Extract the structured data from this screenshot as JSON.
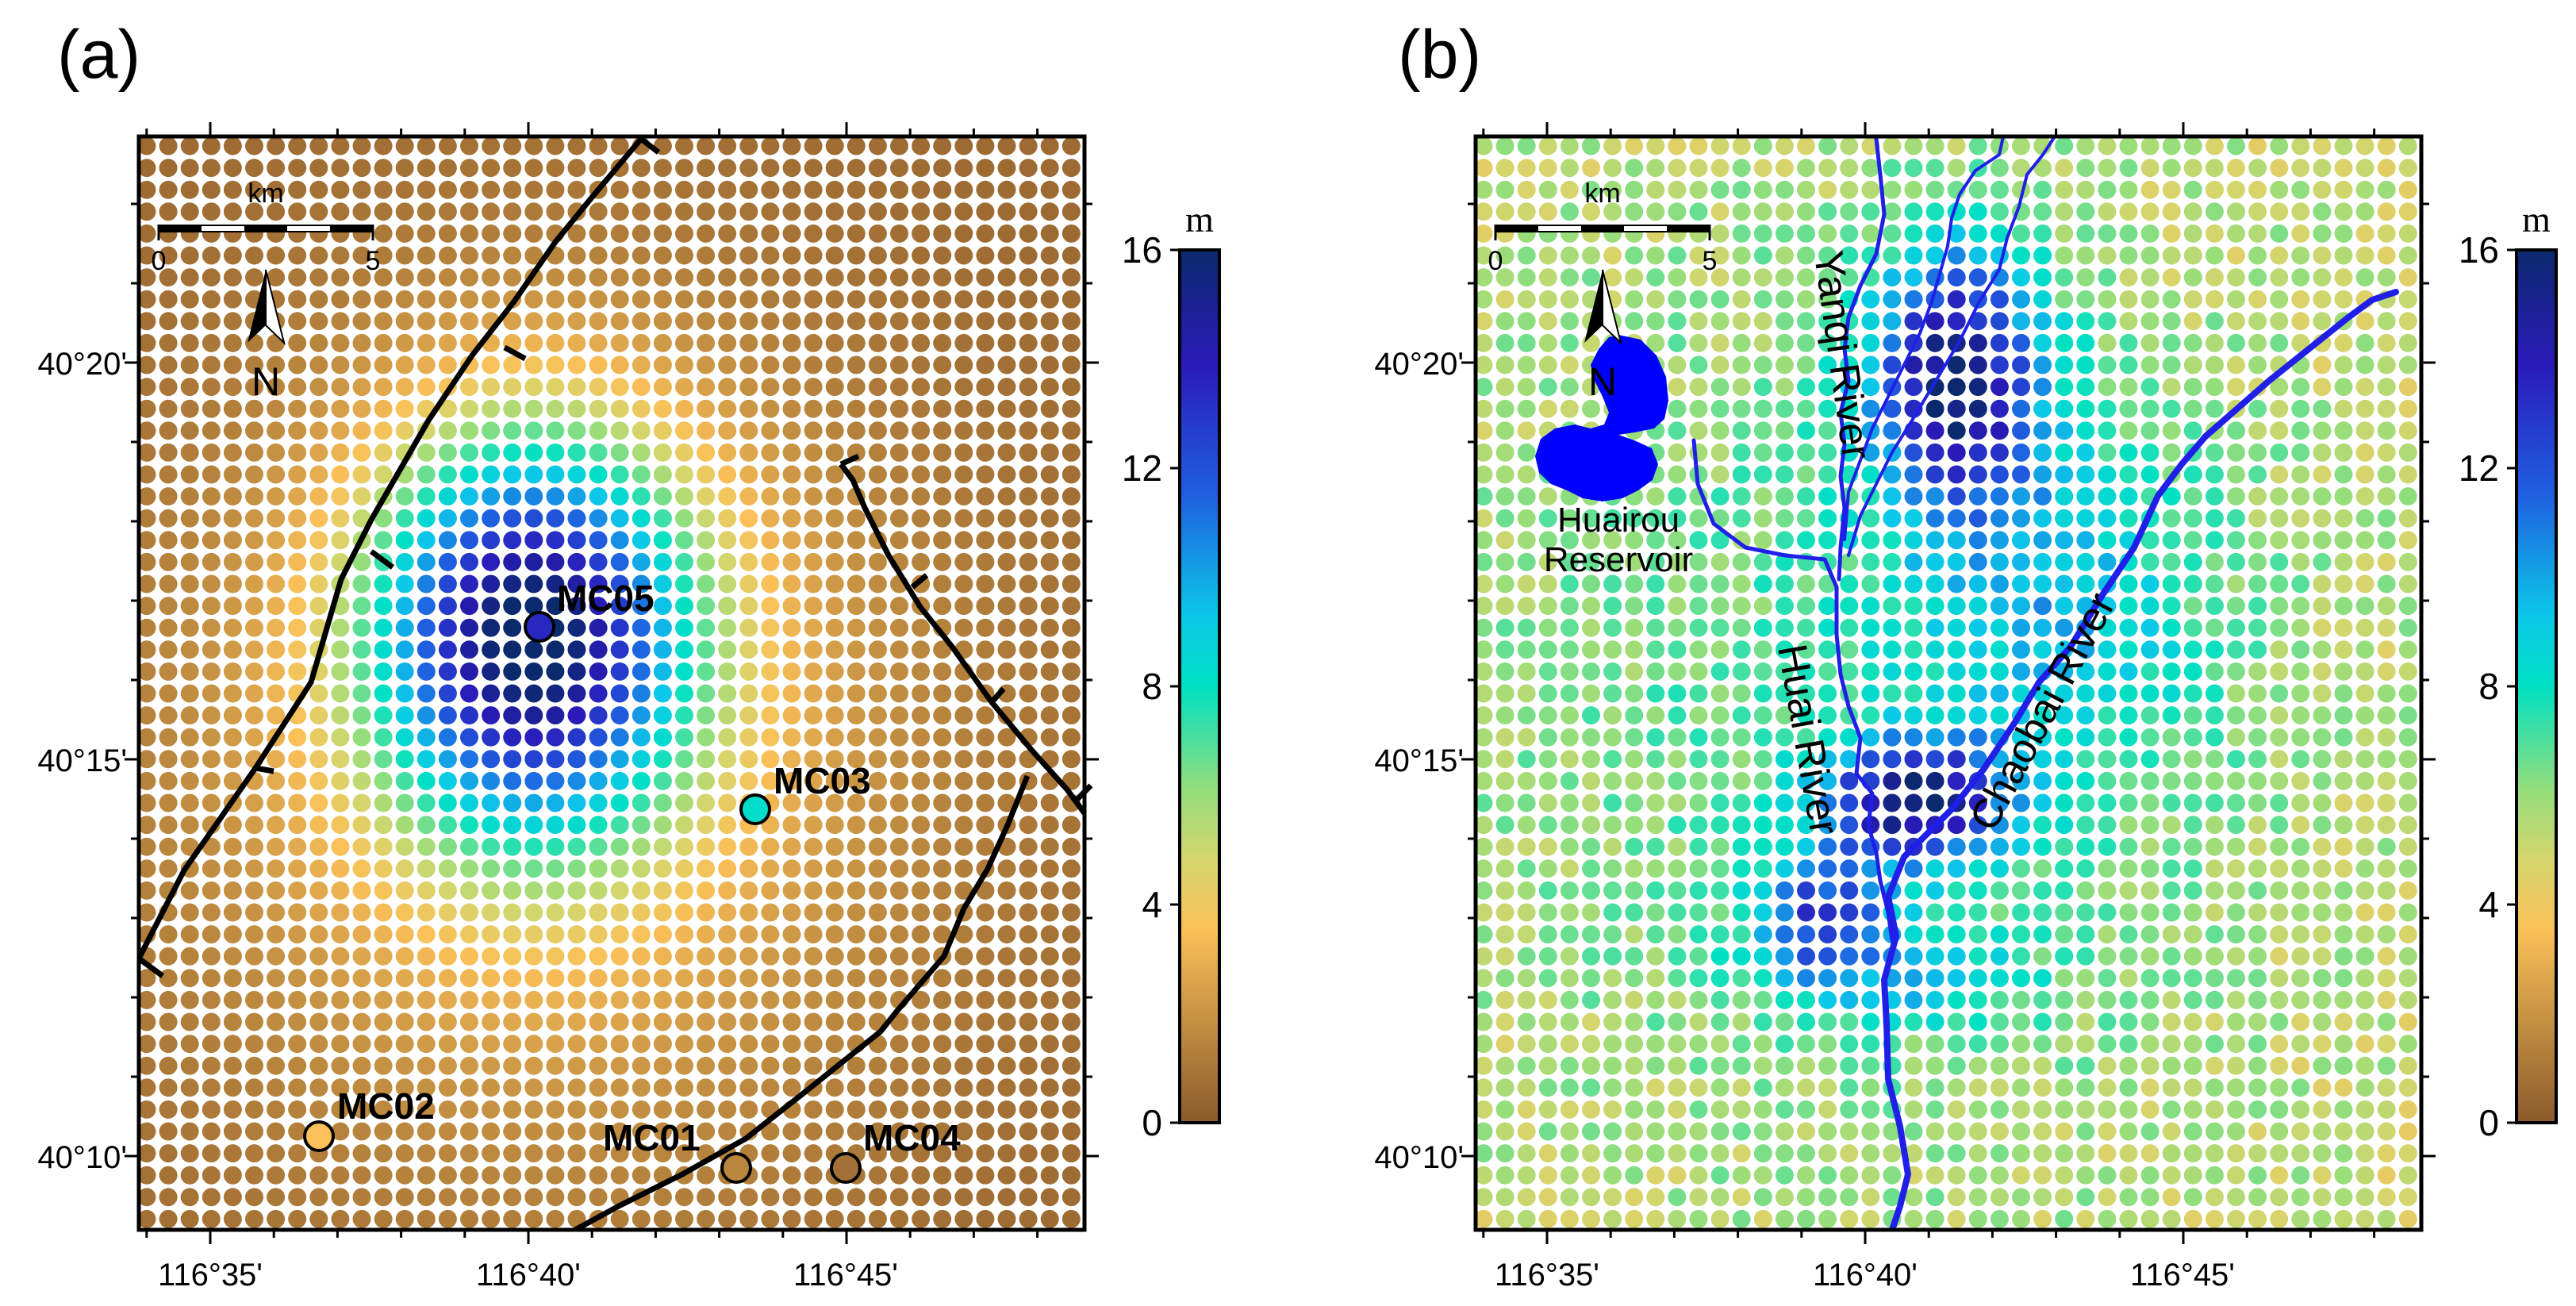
{
  "figure": {
    "panels": [
      {
        "label": "(a)",
        "lon_ticks": [
          "116°35'",
          "116°40'",
          "116°45'"
        ],
        "lat_ticks": [
          "40°20'",
          "40°15'",
          "40°10'"
        ],
        "scalebar": {
          "unit": "km",
          "start": "0",
          "end": "5"
        },
        "north_label": "N",
        "colorbar": {
          "unit": "m",
          "ticks": [
            "16",
            "12",
            "8",
            "4",
            "0"
          ],
          "min": 0,
          "max": 16
        },
        "stations": [
          {
            "name": "MC05",
            "value": 13.5
          },
          {
            "name": "MC03",
            "value": 8.2
          },
          {
            "name": "MC02",
            "value": 3.5
          },
          {
            "name": "MC01",
            "value": 1.5
          },
          {
            "name": "MC04",
            "value": 0.8
          }
        ],
        "field": {
          "peak_m": 14,
          "peak_lon": "116°40'",
          "peak_lat": "40°16.5'",
          "background_m": 0.5
        }
      },
      {
        "label": "(b)",
        "lon_ticks": [
          "116°35'",
          "116°40'",
          "116°45'"
        ],
        "lat_ticks": [
          "40°20'",
          "40°15'",
          "40°10'"
        ],
        "scalebar": {
          "unit": "km",
          "start": "0",
          "end": "5"
        },
        "north_label": "N",
        "colorbar": {
          "unit": "m",
          "ticks": [
            "16",
            "12",
            "8",
            "4",
            "0"
          ],
          "min": 0,
          "max": 16
        },
        "reservoir_label": [
          "Huairou",
          "Reservoir"
        ],
        "rivers": [
          "Yanqi River",
          "Huai River",
          "Chaobai River"
        ],
        "field": {
          "peak_m": 15,
          "background_m": 5
        }
      }
    ],
    "colors": {
      "fault": "#000000",
      "river": "#1f1fe8",
      "reservoir": "#0000ff",
      "dot_background": "#ffffff"
    }
  }
}
